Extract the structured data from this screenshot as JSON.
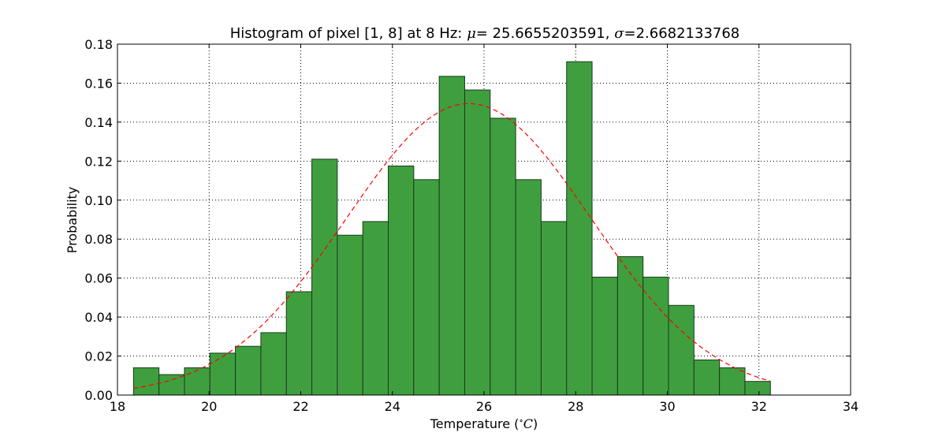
{
  "chart_data": {
    "type": "bar",
    "title": {
      "prefix": "Histogram of pixel [1, 8] at 8 Hz: ",
      "mu_symbol": "μ",
      "mu_text": "= 25.6655203591, ",
      "sigma_symbol": "σ",
      "sigma_text": "=2.6682133768"
    },
    "xlabel": {
      "text": "Temperature (",
      "degree": "∘",
      "unit": "C",
      "close": ")"
    },
    "ylabel": "Probability",
    "xlim": [
      18,
      34
    ],
    "ylim": [
      0,
      0.18
    ],
    "xticks": [
      18,
      20,
      22,
      24,
      26,
      28,
      30,
      32,
      34
    ],
    "yticks": [
      0.0,
      0.02,
      0.04,
      0.06,
      0.08,
      0.1,
      0.12,
      0.14,
      0.16,
      0.18
    ],
    "grid": true,
    "bin_start": 18.35,
    "bin_width": 0.556,
    "values": [
      0.014,
      0.0105,
      0.014,
      0.0215,
      0.025,
      0.032,
      0.053,
      0.121,
      0.082,
      0.089,
      0.1175,
      0.1105,
      0.1635,
      0.1565,
      0.142,
      0.1105,
      0.089,
      0.171,
      0.0605,
      0.071,
      0.0605,
      0.046,
      0.018,
      0.014,
      0.007
    ],
    "fit": {
      "mu": 25.6655203591,
      "sigma": 2.6682133768,
      "x_range": [
        18.35,
        32.25
      ]
    },
    "colors": {
      "bar": "#3f9f3f",
      "bar_edge": "#1a3a1a",
      "fit": "#ff0000",
      "grid": "#000000"
    }
  }
}
